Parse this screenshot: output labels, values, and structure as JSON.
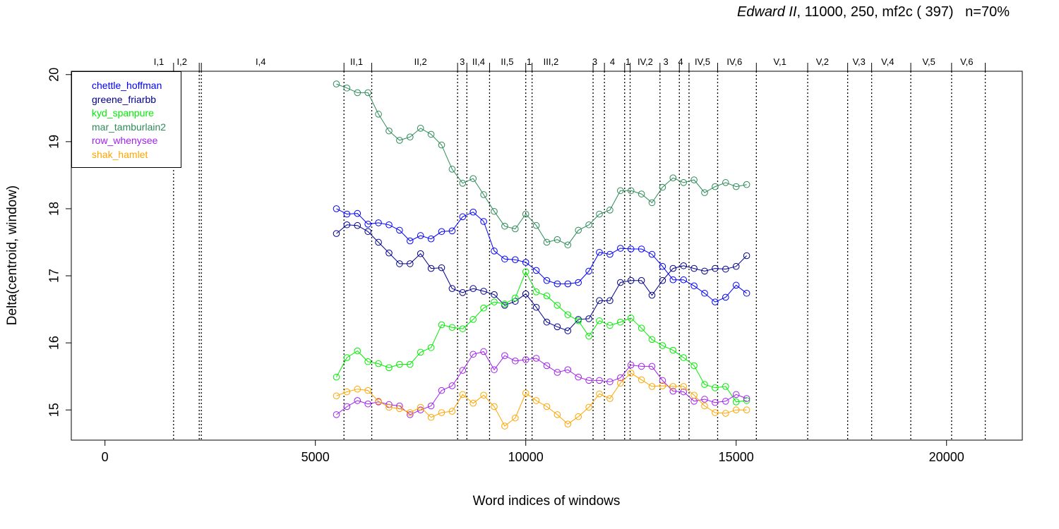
{
  "title": {
    "play": "Edward II",
    "rest": ", 11000, 250, mf2c ( 397)   n=70%"
  },
  "chart_data": {
    "type": "line",
    "xlabel": "Word indices of windows",
    "ylabel": "Delta(centroid, window)",
    "xlim": [
      -800,
      21800
    ],
    "ylim": [
      14.55,
      20.05
    ],
    "xticks": [
      0,
      5000,
      10000,
      15000,
      20000
    ],
    "yticks": [
      15,
      16,
      17,
      18,
      19,
      20
    ],
    "grid": false,
    "legend_position": "top-left",
    "scene_boundaries": [
      1630,
      2240,
      2290,
      5680,
      6340,
      8380,
      8600,
      9140,
      10000,
      10150,
      11600,
      11870,
      12350,
      12480,
      13190,
      13650,
      13880,
      14560,
      15480,
      16700,
      17650,
      18220,
      19150,
      20120,
      20920
    ],
    "scene_labels": [
      {
        "label": "I,1",
        "x": 1280
      },
      {
        "label": "I,2",
        "x": 1830
      },
      {
        "label": "I,4",
        "x": 3700
      },
      {
        "label": "II,1",
        "x": 5980
      },
      {
        "label": "II,2",
        "x": 7500
      },
      {
        "label": "3",
        "x": 8490
      },
      {
        "label": "II,4",
        "x": 8880
      },
      {
        "label": "II,5",
        "x": 9560
      },
      {
        "label": "1",
        "x": 10080
      },
      {
        "label": "III,2",
        "x": 10600
      },
      {
        "label": "3",
        "x": 11640
      },
      {
        "label": "4",
        "x": 12060
      },
      {
        "label": "1",
        "x": 12430
      },
      {
        "label": "IV,2",
        "x": 12840
      },
      {
        "label": "3",
        "x": 13330
      },
      {
        "label": "4",
        "x": 13680
      },
      {
        "label": "IV,5",
        "x": 14200
      },
      {
        "label": "IV,6",
        "x": 14960
      },
      {
        "label": "V,1",
        "x": 16040
      },
      {
        "label": "V,2",
        "x": 17050
      },
      {
        "label": "V,3",
        "x": 17920
      },
      {
        "label": "V,4",
        "x": 18600
      },
      {
        "label": "V,5",
        "x": 19580
      },
      {
        "label": "V,6",
        "x": 20480
      }
    ],
    "x": [
      5500,
      5750,
      6000,
      6250,
      6500,
      6750,
      7000,
      7250,
      7500,
      7750,
      8000,
      8250,
      8500,
      8750,
      9000,
      9250,
      9500,
      9750,
      10000,
      10250,
      10500,
      10750,
      11000,
      11250,
      11500,
      11750,
      12000,
      12250,
      12500,
      12750,
      13000,
      13250,
      13500,
      13750,
      14000,
      14250,
      14500,
      14750,
      15000,
      15250
    ],
    "series": [
      {
        "name": "chettle_hoffman",
        "color": "#0000ff",
        "values": [
          18.0,
          17.92,
          17.93,
          17.77,
          17.79,
          17.76,
          17.68,
          17.52,
          17.6,
          17.55,
          17.66,
          17.67,
          17.88,
          17.95,
          17.81,
          17.37,
          17.25,
          17.24,
          17.2,
          17.08,
          16.93,
          16.88,
          16.88,
          16.9,
          17.07,
          17.35,
          17.32,
          17.41,
          17.4,
          17.4,
          17.32,
          17.14,
          16.94,
          16.94,
          16.85,
          16.74,
          16.61,
          16.68,
          16.86,
          16.74
        ]
      },
      {
        "name": "greene_friarbb",
        "color": "#00008b",
        "values": [
          17.63,
          17.76,
          17.75,
          17.66,
          17.5,
          17.34,
          17.18,
          17.18,
          17.33,
          17.11,
          17.12,
          16.81,
          16.75,
          16.81,
          16.77,
          16.72,
          16.56,
          16.62,
          16.73,
          16.53,
          16.31,
          16.24,
          16.18,
          16.35,
          16.36,
          16.63,
          16.63,
          16.9,
          16.93,
          16.93,
          16.71,
          16.93,
          17.11,
          17.15,
          17.11,
          17.07,
          17.11,
          17.1,
          17.14,
          17.3
        ]
      },
      {
        "name": "kyd_spanpure",
        "color": "#00ee00",
        "values": [
          15.49,
          15.78,
          15.88,
          15.72,
          15.69,
          15.63,
          15.68,
          15.68,
          15.86,
          15.93,
          16.27,
          16.23,
          16.21,
          16.35,
          16.52,
          16.61,
          16.58,
          16.67,
          17.06,
          16.76,
          16.7,
          16.56,
          16.42,
          16.33,
          16.1,
          16.33,
          16.26,
          16.31,
          16.37,
          16.22,
          16.05,
          15.96,
          15.89,
          15.78,
          15.66,
          15.38,
          15.33,
          15.35,
          15.12,
          15.14
        ]
      },
      {
        "name": "mar_tamburlain2",
        "color": "#2e8b57",
        "values": [
          19.86,
          19.8,
          19.73,
          19.73,
          19.41,
          19.16,
          19.02,
          19.07,
          19.2,
          19.11,
          18.95,
          18.59,
          18.38,
          18.45,
          18.21,
          17.96,
          17.74,
          17.7,
          17.92,
          17.75,
          17.5,
          17.54,
          17.46,
          17.68,
          17.76,
          17.92,
          17.98,
          18.27,
          18.27,
          18.22,
          18.09,
          18.32,
          18.46,
          18.39,
          18.43,
          18.24,
          18.33,
          18.39,
          18.33,
          18.36
        ]
      },
      {
        "name": "row_whenysee",
        "color": "#a020f0",
        "values": [
          14.93,
          15.05,
          15.14,
          15.09,
          15.12,
          15.08,
          15.06,
          14.93,
          15.0,
          15.06,
          15.29,
          15.36,
          15.59,
          15.83,
          15.87,
          15.6,
          15.81,
          15.73,
          15.75,
          15.77,
          15.66,
          15.56,
          15.6,
          15.49,
          15.44,
          15.44,
          15.42,
          15.48,
          15.67,
          15.65,
          15.65,
          15.44,
          15.28,
          15.27,
          15.13,
          15.16,
          15.11,
          15.13,
          15.23,
          15.17
        ]
      },
      {
        "name": "shak_hamlet",
        "color": "#ffa500",
        "values": [
          15.21,
          15.27,
          15.31,
          15.29,
          15.13,
          15.04,
          15.02,
          14.96,
          15.04,
          14.89,
          14.96,
          14.98,
          15.23,
          15.1,
          15.22,
          15.05,
          14.76,
          14.88,
          15.25,
          15.14,
          15.05,
          14.93,
          14.79,
          14.9,
          15.04,
          15.24,
          15.17,
          15.4,
          15.55,
          15.45,
          15.35,
          15.36,
          15.35,
          15.35,
          15.22,
          15.06,
          14.96,
          14.95,
          15.0,
          15.0
        ]
      }
    ]
  }
}
